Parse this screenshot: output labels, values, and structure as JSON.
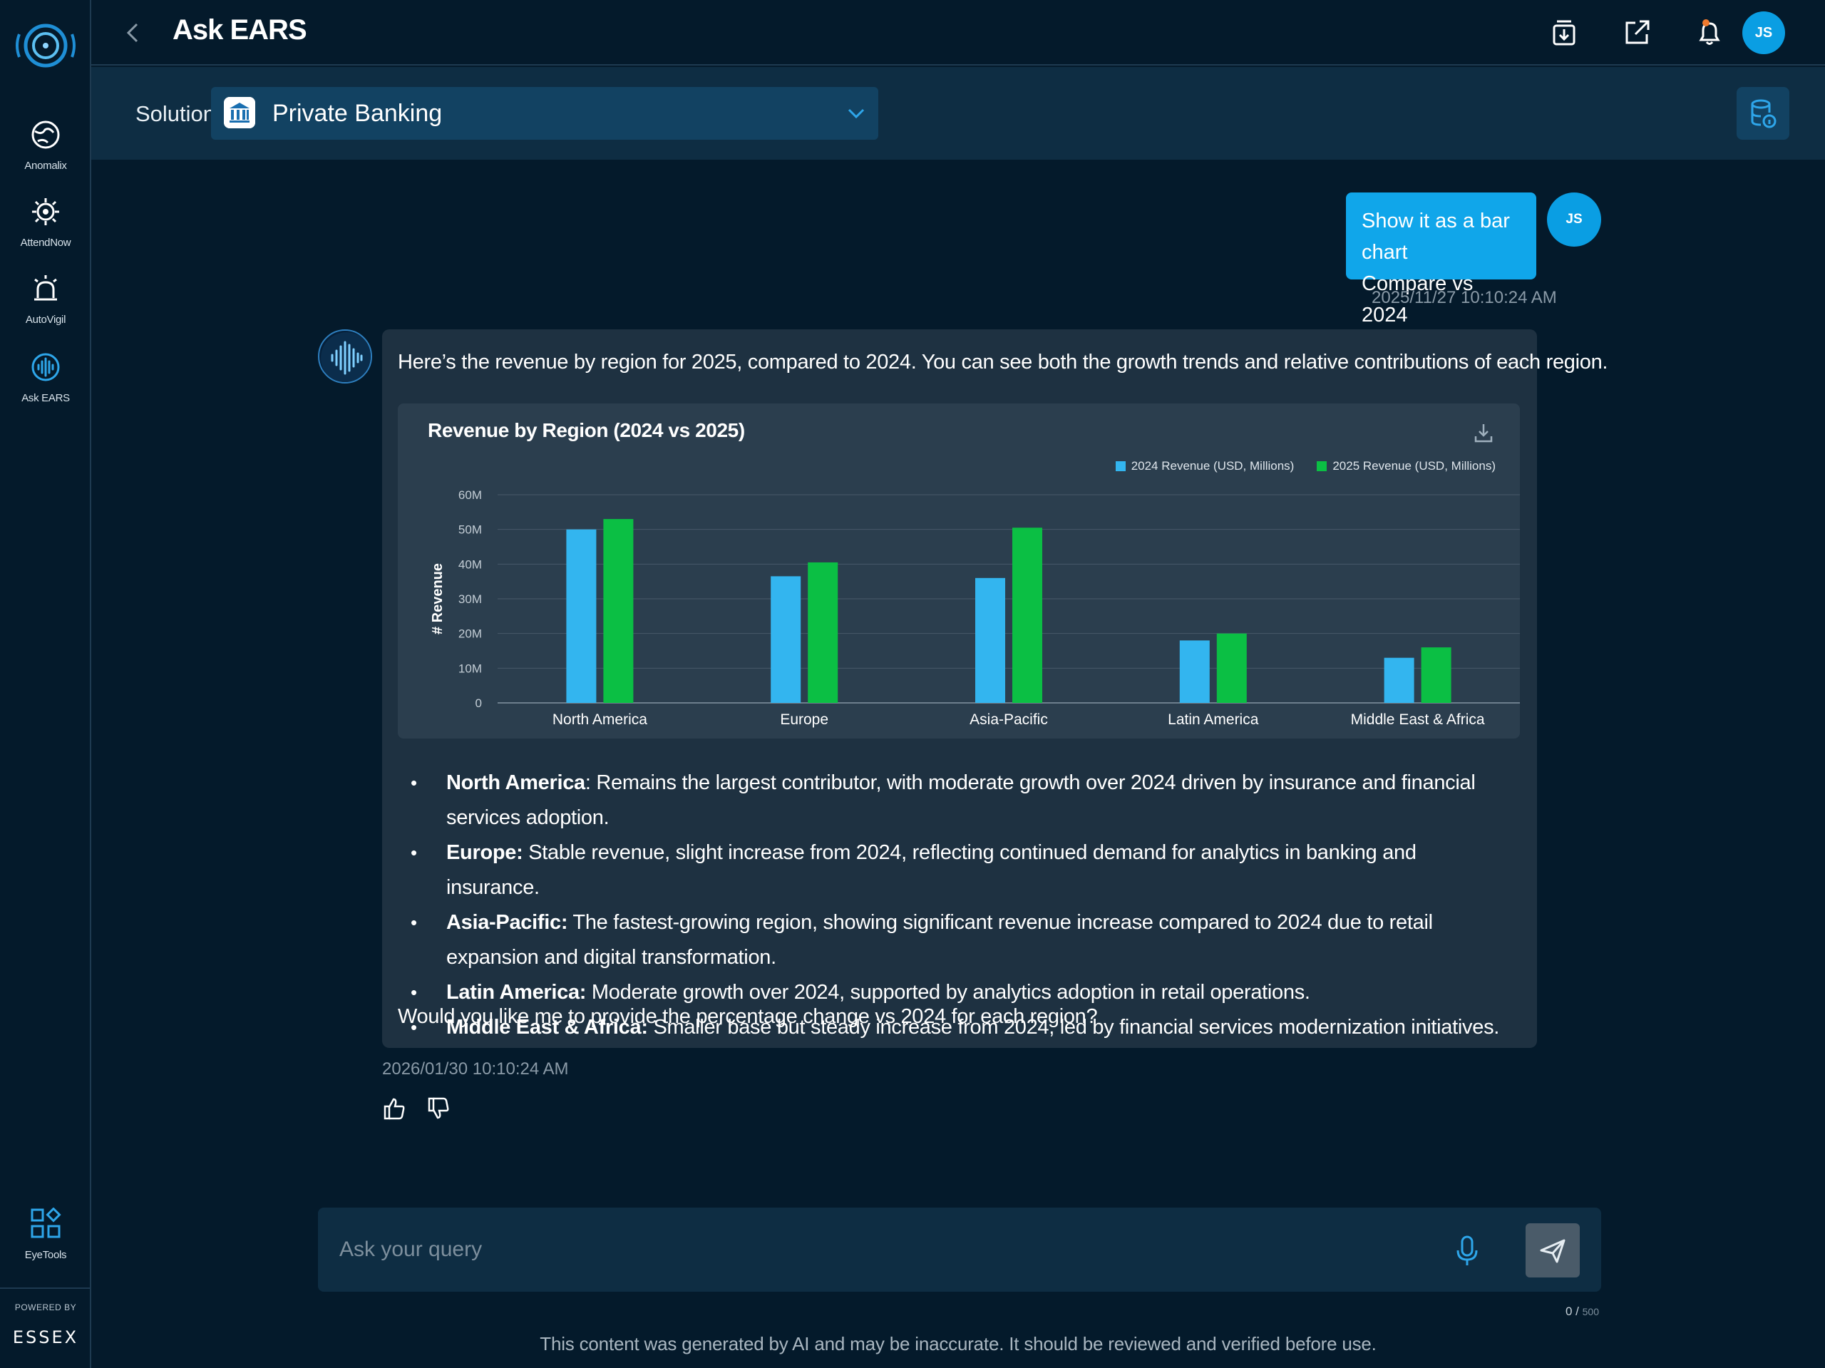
{
  "sidebar": {
    "items": [
      {
        "label": "Anomalix",
        "icon": "globe-radar-icon"
      },
      {
        "label": "AttendNow",
        "icon": "eye-gear-icon"
      },
      {
        "label": "AutoVigil",
        "icon": "alarm-siren-icon"
      },
      {
        "label": "Ask EARS",
        "icon": "audio-wave-icon"
      }
    ],
    "eyetools_label": "EyeTools",
    "powered_by": "POWERED BY",
    "brand": "ESSEX"
  },
  "header": {
    "title": "Ask EARS",
    "avatar_initials": "JS"
  },
  "solution": {
    "label": "Solution",
    "selected": "Private Banking"
  },
  "user_message": {
    "line1": "Show it as a bar chart",
    "line2": "Compare vs 2024",
    "timestamp": "2025/11/27 10:10:24 AM",
    "avatar_initials": "JS"
  },
  "bot_message": {
    "intro": "Here’s the revenue by region for 2025, compared to 2024. You can see both the growth trends and relative contributions of each region.",
    "bullets": [
      {
        "title": "North America",
        "text": ": Remains the largest contributor, with moderate growth over 2024 driven by insurance and financial services adoption."
      },
      {
        "title": "Europe:",
        "text": " Stable revenue, slight increase from 2024, reflecting continued demand for analytics in banking and insurance."
      },
      {
        "title": "Asia-Pacific:",
        "text": " The fastest-growing region, showing significant revenue increase compared to 2024 due to retail expansion and digital transformation."
      },
      {
        "title": "Latin America:",
        "text": " Moderate growth over 2024, supported by analytics adoption in retail operations."
      },
      {
        "title": "Middle East & Africa:",
        "text": " Smaller base but steady increase from 2024, led by financial services modernization initiatives."
      }
    ],
    "question": "Would you like me to provide the percentage change vs 2024 for each region?",
    "timestamp": "2026/01/30 10:10:24 AM"
  },
  "chart_data": {
    "type": "bar",
    "title": "Revenue by Region (2024 vs 2025)",
    "xlabel": "",
    "ylabel": "# Revenue",
    "categories": [
      "North America",
      "Europe",
      "Asia-Pacific",
      "Latin America",
      "Middle East & Africa"
    ],
    "series": [
      {
        "name": "2024 Revenue (USD, Millions)",
        "color": "#33b5ef",
        "values": [
          50,
          36.5,
          36,
          18,
          13
        ]
      },
      {
        "name": "2025 Revenue (USD, Millions)",
        "color": "#0bbf44",
        "values": [
          53,
          40.5,
          50.5,
          20,
          16
        ]
      }
    ],
    "ylim": [
      0,
      60
    ],
    "yticks": [
      0,
      10,
      20,
      30,
      40,
      50,
      60
    ],
    "ytick_labels": [
      "0",
      "10M",
      "20M",
      "30M",
      "40M",
      "50M",
      "60M"
    ],
    "grid": true,
    "legend_position": "top-right"
  },
  "input": {
    "placeholder": "Ask your query",
    "count": "0 /",
    "max": "500"
  },
  "disclaimer": "This content was generated by AI and may be inaccurate. It should be reviewed and verified before use.",
  "colors": {
    "background": "#041a2b",
    "accent": "#10a6ea",
    "series_2024": "#33b5ef",
    "series_2025": "#0bbf44"
  }
}
